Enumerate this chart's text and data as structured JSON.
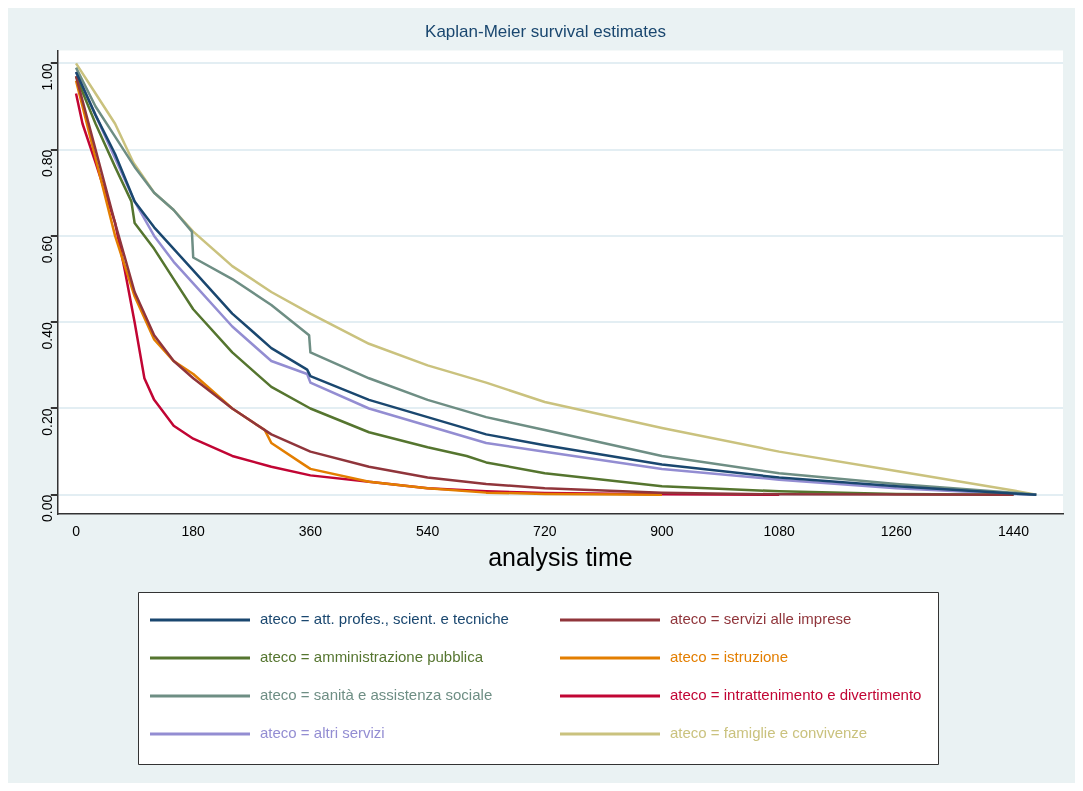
{
  "chart_data": {
    "type": "line",
    "title": "Kaplan-Meier survival estimates",
    "xlabel": "analysis time",
    "xlim": [
      -28,
      1516
    ],
    "xticks": [
      0,
      180,
      360,
      540,
      720,
      900,
      1080,
      1260,
      1440
    ],
    "ylim": [
      -0.045,
      1.03
    ],
    "yticks": [
      {
        "value": 0,
        "label": "0.00"
      },
      {
        "value": 0.2,
        "label": "0.20"
      },
      {
        "value": 0.4,
        "label": "0.40"
      },
      {
        "value": 0.6,
        "label": "0.60"
      },
      {
        "value": 0.8,
        "label": "0.80"
      },
      {
        "value": 1,
        "label": "1.00"
      }
    ],
    "grid": "y",
    "legend": "bottom",
    "marker": "none",
    "line_style": "solid",
    "series": [
      {
        "name": "ateco = att. profes., scient. e tecniche",
        "color": "#1a476f",
        "x": [
          0,
          30,
          60,
          90,
          120,
          150,
          180,
          240,
          300,
          355,
          360,
          450,
          540,
          630,
          720,
          900,
          1080,
          1260,
          1440,
          1475
        ],
        "values": [
          0.98,
          0.88,
          0.79,
          0.68,
          0.62,
          0.57,
          0.52,
          0.42,
          0.34,
          0.29,
          0.275,
          0.22,
          0.18,
          0.14,
          0.115,
          0.07,
          0.04,
          0.02,
          0.003,
          0
        ]
      },
      {
        "name": "ateco = servizi alle imprese",
        "color": "#90353b",
        "x": [
          0,
          30,
          60,
          90,
          120,
          150,
          180,
          240,
          300,
          360,
          450,
          540,
          630,
          720,
          900,
          1080,
          1440
        ],
        "values": [
          0.97,
          0.8,
          0.63,
          0.47,
          0.37,
          0.31,
          0.27,
          0.2,
          0.14,
          0.1,
          0.065,
          0.04,
          0.025,
          0.015,
          0.005,
          0.001,
          0
        ]
      },
      {
        "name": "ateco = amministrazione pubblica",
        "color": "#55752f",
        "x": [
          0,
          30,
          60,
          85,
          90,
          120,
          150,
          180,
          240,
          300,
          360,
          450,
          540,
          600,
          630,
          720,
          900,
          1080,
          1260,
          1440
        ],
        "values": [
          0.97,
          0.86,
          0.76,
          0.68,
          0.63,
          0.57,
          0.5,
          0.43,
          0.33,
          0.25,
          0.2,
          0.145,
          0.11,
          0.09,
          0.075,
          0.05,
          0.02,
          0.008,
          0.002,
          0
        ]
      },
      {
        "name": "ateco = istruzione",
        "color": "#e37e00",
        "x": [
          0,
          30,
          60,
          90,
          120,
          150,
          180,
          240,
          290,
          300,
          350,
          360,
          450,
          540,
          630,
          720,
          900
        ],
        "values": [
          0.96,
          0.78,
          0.6,
          0.46,
          0.36,
          0.31,
          0.28,
          0.2,
          0.15,
          0.12,
          0.07,
          0.06,
          0.03,
          0.015,
          0.005,
          0.002,
          0
        ]
      },
      {
        "name": "ateco = sanità e assistenza sociale",
        "color": "#6e8e84",
        "x": [
          0,
          30,
          60,
          90,
          120,
          150,
          178,
          180,
          240,
          300,
          358,
          360,
          450,
          540,
          630,
          720,
          900,
          1080,
          1260,
          1440,
          1475
        ],
        "values": [
          0.99,
          0.9,
          0.83,
          0.76,
          0.7,
          0.66,
          0.61,
          0.55,
          0.5,
          0.44,
          0.37,
          0.33,
          0.27,
          0.22,
          0.18,
          0.15,
          0.09,
          0.05,
          0.025,
          0.005,
          0
        ]
      },
      {
        "name": "ateco = intrattenimento e divertimento",
        "color": "#c10534",
        "x": [
          0,
          10,
          30,
          60,
          75,
          90,
          105,
          120,
          150,
          180,
          240,
          300,
          360,
          450,
          540,
          630,
          720,
          900,
          1080
        ],
        "values": [
          0.93,
          0.86,
          0.77,
          0.63,
          0.52,
          0.4,
          0.27,
          0.22,
          0.16,
          0.13,
          0.09,
          0.065,
          0.045,
          0.03,
          0.015,
          0.008,
          0.004,
          0.001,
          0
        ]
      },
      {
        "name": "ateco = altri servizi",
        "color": "#938dd2",
        "x": [
          0,
          30,
          60,
          90,
          120,
          150,
          180,
          240,
          300,
          355,
          360,
          450,
          540,
          630,
          720,
          900,
          1080,
          1260,
          1440,
          1475
        ],
        "values": [
          0.98,
          0.88,
          0.78,
          0.68,
          0.6,
          0.54,
          0.49,
          0.39,
          0.31,
          0.28,
          0.26,
          0.2,
          0.16,
          0.12,
          0.1,
          0.06,
          0.035,
          0.015,
          0.002,
          0
        ]
      },
      {
        "name": "ateco = famiglie e convivenze",
        "color": "#cac27e",
        "x": [
          0,
          30,
          60,
          88,
          120,
          150,
          180,
          240,
          300,
          360,
          450,
          540,
          630,
          720,
          900,
          1080,
          1260,
          1440,
          1475
        ],
        "values": [
          1,
          0.93,
          0.86,
          0.77,
          0.7,
          0.66,
          0.61,
          0.53,
          0.47,
          0.42,
          0.35,
          0.3,
          0.26,
          0.215,
          0.155,
          0.1,
          0.055,
          0.01,
          0
        ]
      }
    ]
  }
}
